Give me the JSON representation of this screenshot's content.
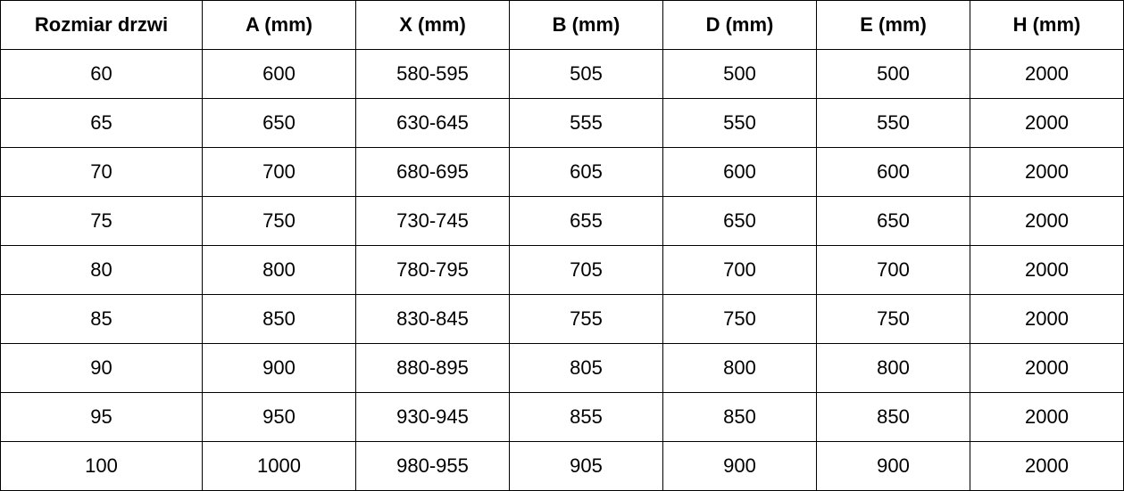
{
  "table": {
    "headers": [
      "Rozmiar drzwi",
      "A (mm)",
      "X (mm)",
      "B (mm)",
      "D (mm)",
      "E (mm)",
      "H (mm)"
    ],
    "rows": [
      [
        "60",
        "600",
        "580-595",
        "505",
        "500",
        "500",
        "2000"
      ],
      [
        "65",
        "650",
        "630-645",
        "555",
        "550",
        "550",
        "2000"
      ],
      [
        "70",
        "700",
        "680-695",
        "605",
        "600",
        "600",
        "2000"
      ],
      [
        "75",
        "750",
        "730-745",
        "655",
        "650",
        "650",
        "2000"
      ],
      [
        "80",
        "800",
        "780-795",
        "705",
        "700",
        "700",
        "2000"
      ],
      [
        "85",
        "850",
        "830-845",
        "755",
        "750",
        "750",
        "2000"
      ],
      [
        "90",
        "900",
        "880-895",
        "805",
        "800",
        "800",
        "2000"
      ],
      [
        "95",
        "950",
        "930-945",
        "855",
        "850",
        "850",
        "2000"
      ],
      [
        "100",
        "1000",
        "980-955",
        "905",
        "900",
        "900",
        "2000"
      ]
    ]
  }
}
